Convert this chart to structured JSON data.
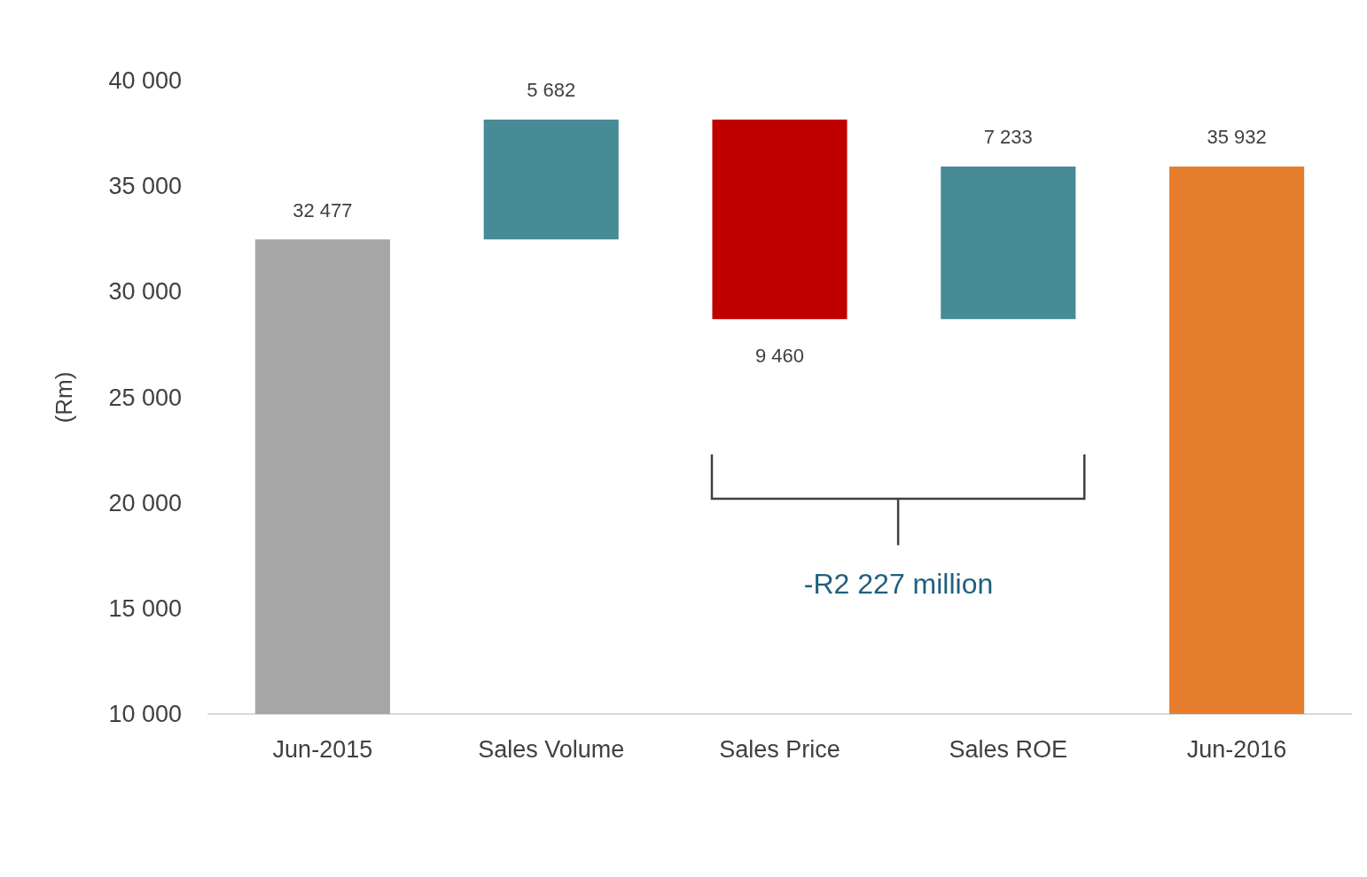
{
  "chart_data": {
    "type": "bar",
    "ylabel": "(Rm)",
    "categories": [
      "Jun-2015",
      "Sales Volume",
      "Sales Price",
      "Sales ROE",
      "Jun-2016"
    ],
    "values": [
      32477,
      5682,
      -9460,
      7233,
      35932
    ],
    "base": [
      0,
      32477,
      38159,
      28699,
      0
    ],
    "colors": [
      "#a6a6a6",
      "#468b96",
      "#c00000",
      "#468b96",
      "#e67e2e"
    ],
    "value_labels": [
      "32 477",
      "5 682",
      "9 460",
      "7 233",
      "35 932"
    ],
    "ylim": [
      10000,
      40000
    ],
    "yticks": [
      {
        "value": 10000,
        "label": "10 000"
      },
      {
        "value": 15000,
        "label": "15 000"
      },
      {
        "value": 20000,
        "label": "20 000"
      },
      {
        "value": 25000,
        "label": "25 000"
      },
      {
        "value": 30000,
        "label": "30 000"
      },
      {
        "value": 35000,
        "label": "35 000"
      },
      {
        "value": 40000,
        "label": "40 000"
      }
    ],
    "grid": false,
    "annotations": [
      "-R2 227 million"
    ]
  }
}
